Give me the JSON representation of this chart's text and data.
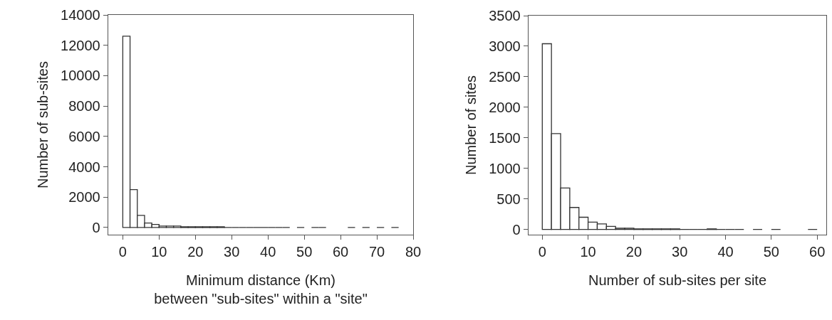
{
  "chart_data": [
    {
      "type": "histogram",
      "xlabel": "Minimum distance (Km)\nbetween \"sub-sites\" within a \"site\"",
      "ylabel": "Number of sub-sites",
      "color": "#333333",
      "bins": [
        0,
        2,
        4,
        6,
        8,
        10,
        12,
        14,
        16,
        18,
        20,
        22,
        24,
        26,
        28,
        30,
        32,
        34,
        36,
        38,
        40,
        42,
        44,
        46,
        48,
        50,
        52,
        54,
        56,
        58,
        60,
        62,
        64,
        66,
        68,
        70,
        72,
        74,
        76
      ],
      "values": [
        12600,
        2500,
        800,
        300,
        200,
        100,
        100,
        100,
        50,
        50,
        50,
        50,
        50,
        50,
        0,
        0,
        0,
        0,
        0,
        0,
        0,
        0,
        0,
        null,
        0,
        null,
        0,
        0,
        null,
        null,
        null,
        0,
        null,
        0,
        null,
        0,
        null,
        0
      ],
      "xlim": [
        -4,
        80
      ],
      "xticks": [
        0,
        10,
        20,
        30,
        40,
        50,
        60,
        70,
        80
      ],
      "ylim": [
        -470,
        14000
      ],
      "yticks": [
        0,
        2000,
        4000,
        6000,
        8000,
        10000,
        12000,
        14000
      ],
      "grid": false
    },
    {
      "type": "histogram",
      "xlabel": "Number of sub-sites per site",
      "ylabel": "Number of sites",
      "color": "#333333",
      "bins": [
        0,
        2,
        4,
        6,
        8,
        10,
        12,
        14,
        16,
        18,
        20,
        22,
        24,
        26,
        28,
        30,
        32,
        34,
        36,
        38,
        40,
        42,
        44,
        46,
        48,
        50,
        52,
        54,
        56,
        58,
        60
      ],
      "values": [
        3040,
        1570,
        680,
        360,
        200,
        120,
        90,
        50,
        20,
        20,
        10,
        10,
        10,
        10,
        10,
        0,
        0,
        0,
        10,
        0,
        0,
        0,
        null,
        0,
        null,
        0,
        null,
        null,
        null,
        0
      ],
      "xlim": [
        -3,
        62
      ],
      "xticks": [
        0,
        10,
        20,
        30,
        40,
        50,
        60
      ],
      "ylim": [
        -85,
        3500
      ],
      "yticks": [
        0,
        500,
        1000,
        1500,
        2000,
        2500,
        3000,
        3500
      ],
      "grid": false
    }
  ]
}
